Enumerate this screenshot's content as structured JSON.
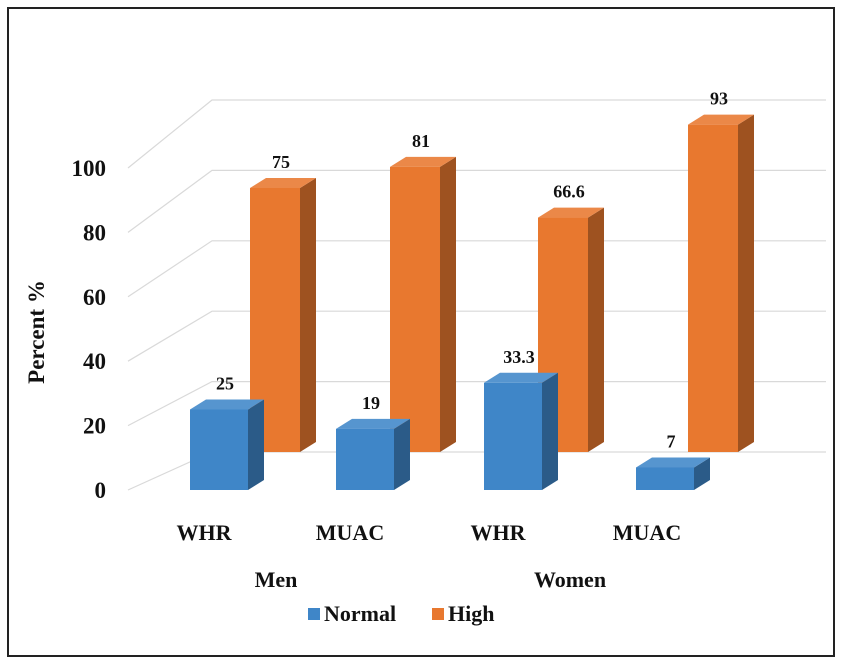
{
  "chart_data": {
    "type": "bar",
    "style": "3d-clustered-column",
    "ylabel": "Percent %",
    "ylim": [
      0,
      100
    ],
    "yticks": [
      0,
      20,
      40,
      60,
      80,
      100
    ],
    "categories": [
      "WHR",
      "MUAC",
      "WHR",
      "MUAC"
    ],
    "groups": [
      {
        "label": "Men",
        "categories": [
          "WHR",
          "MUAC"
        ]
      },
      {
        "label": "Women",
        "categories": [
          "WHR",
          "MUAC"
        ]
      }
    ],
    "series": [
      {
        "name": "Normal",
        "values": [
          25,
          19,
          33.3,
          7
        ],
        "value_labels": [
          "25",
          "19",
          "33.3",
          "7"
        ],
        "color": "#3F86C8"
      },
      {
        "name": "High",
        "values": [
          75,
          81,
          66.6,
          93
        ],
        "value_labels": [
          "75",
          "81",
          "66.6",
          "93"
        ],
        "color": "#E8782F"
      }
    ],
    "gridlines": true,
    "legend_position": "bottom"
  }
}
